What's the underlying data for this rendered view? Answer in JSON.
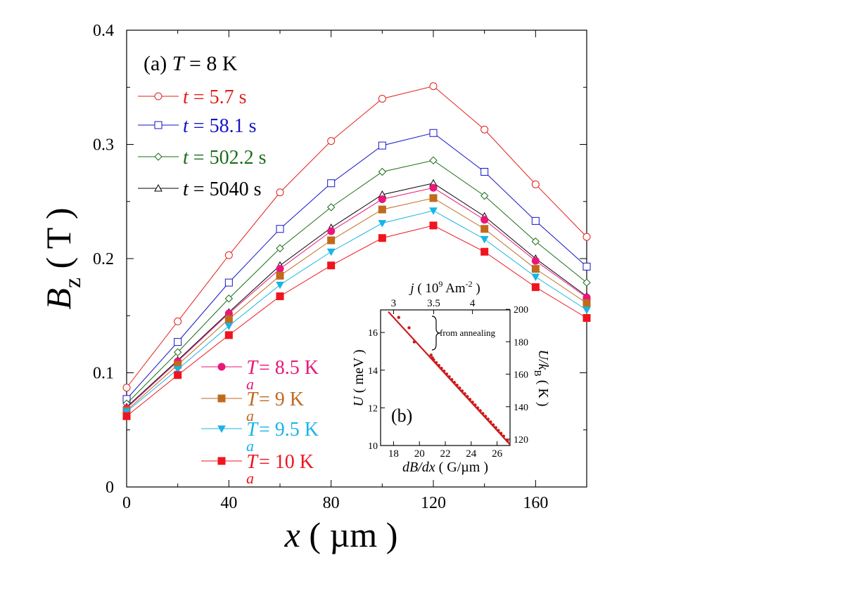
{
  "chart_data": [
    {
      "type": "line",
      "panel_label": "(a)",
      "header": {
        "var": "T",
        "rest": " = 8 K"
      },
      "xlabel": {
        "var": "x",
        "rest": " ( µm )"
      },
      "ylabel": {
        "var": "B",
        "sub": "z",
        "rest": " ( T )"
      },
      "xlim": [
        0,
        180
      ],
      "ylim": [
        0,
        0.4
      ],
      "xticks": [
        0,
        40,
        80,
        120,
        160
      ],
      "yticks": [
        0,
        0.1,
        0.2,
        0.3,
        0.4
      ],
      "ytick_labels": [
        "0",
        "0.1",
        "0.2",
        "0.3",
        "0.4"
      ],
      "x": [
        0,
        20,
        40,
        60,
        80,
        100,
        120,
        140,
        160,
        180
      ],
      "series": [
        {
          "name": "t = 5.7 s",
          "var": "t",
          "rest": " = 5.7 s",
          "color": "#e0201a",
          "marker": "circle",
          "filled": false,
          "values": [
            0.087,
            0.145,
            0.203,
            0.258,
            0.303,
            0.34,
            0.351,
            0.313,
            0.265,
            0.219
          ]
        },
        {
          "name": "t = 58.1 s",
          "var": "t",
          "rest": " = 58.1 s",
          "color": "#1515c8",
          "marker": "square",
          "filled": false,
          "values": [
            0.077,
            0.127,
            0.179,
            0.226,
            0.266,
            0.299,
            0.31,
            0.276,
            0.233,
            0.193
          ]
        },
        {
          "name": "t = 502.2 s",
          "var": "t",
          "rest": " = 502.2 s",
          "color": "#1a6e1a",
          "marker": "diamond",
          "filled": false,
          "values": [
            0.073,
            0.118,
            0.165,
            0.209,
            0.245,
            0.276,
            0.286,
            0.255,
            0.215,
            0.179
          ]
        },
        {
          "name": "t = 5040 s",
          "var": "t",
          "rest": " = 5040 s",
          "color": "#000000",
          "marker": "triangle",
          "filled": false,
          "values": [
            0.07,
            0.111,
            0.153,
            0.194,
            0.227,
            0.256,
            0.266,
            0.237,
            0.2,
            0.167
          ]
        },
        {
          "name": "Ta = 8.5 K",
          "var": "T",
          "sub": "a",
          "rest": " = 8.5 K",
          "color": "#e8187a",
          "marker": "circle",
          "filled": true,
          "values": [
            0.069,
            0.11,
            0.152,
            0.191,
            0.224,
            0.252,
            0.262,
            0.234,
            0.198,
            0.166
          ]
        },
        {
          "name": "Ta = 9 K",
          "var": "T",
          "sub": "a",
          "rest": " = 9 K",
          "color": "#c06a1e",
          "marker": "square",
          "filled": true,
          "values": [
            0.067,
            0.107,
            0.147,
            0.185,
            0.216,
            0.243,
            0.253,
            0.226,
            0.191,
            0.161
          ]
        },
        {
          "name": "Ta = 9.5 K",
          "var": "T",
          "sub": "a",
          "rest": " = 9.5 K",
          "color": "#18b4e8",
          "marker": "triangle-down",
          "filled": true,
          "values": [
            0.066,
            0.103,
            0.141,
            0.177,
            0.206,
            0.231,
            0.242,
            0.217,
            0.184,
            0.155
          ]
        },
        {
          "name": "Ta = 10 K",
          "var": "T",
          "sub": "a",
          "rest": " = 10 K",
          "color": "#f0141e",
          "marker": "square",
          "filled": true,
          "values": [
            0.062,
            0.098,
            0.133,
            0.167,
            0.194,
            0.218,
            0.229,
            0.206,
            0.175,
            0.148
          ]
        }
      ]
    },
    {
      "type": "scatter",
      "panel_label": "(b)",
      "xlabel": {
        "var": "dB/dx",
        "rest": " ( G/µm )"
      },
      "ylabel": {
        "var": "U",
        "rest": " ( meV )"
      },
      "top_axis_label": {
        "var": "j",
        "rest_before": " ( 10",
        "sup": "9",
        "rest_after": " Am",
        "sup2": "-2",
        "close": " )"
      },
      "right_axis_label": {
        "var": "U/k",
        "sub": "B",
        "rest": " ( K )"
      },
      "xlim": [
        17,
        27
      ],
      "ylim": [
        10,
        17.2
      ],
      "xticks": [
        18,
        20,
        22,
        24,
        26
      ],
      "yticks": [
        10,
        12,
        14,
        16
      ],
      "top_ticks": [
        {
          "label": "3",
          "x": 18.0
        },
        {
          "label": "3.5",
          "x": 21.1
        },
        {
          "label": "4",
          "x": 24.1
        }
      ],
      "right_ticks": [
        {
          "label": "120",
          "y": 10.34
        },
        {
          "label": "140",
          "y": 12.06
        },
        {
          "label": "160",
          "y": 13.79
        },
        {
          "label": "180",
          "y": 15.51
        },
        {
          "label": "200",
          "y": 17.23
        }
      ],
      "annotation": "from annealing",
      "fit_line": {
        "x": [
          17.6,
          27.0
        ],
        "y": [
          17.1,
          10.05
        ]
      },
      "color": "#cc1a1a",
      "points": {
        "x": [
          18.4,
          19.2,
          19.6,
          20.9,
          21.0,
          21.1,
          21.3,
          21.5,
          21.7,
          21.9,
          22.1,
          22.3,
          22.5,
          22.7,
          22.9,
          23.1,
          23.3,
          23.5,
          23.7,
          23.9,
          24.1,
          24.3,
          24.5,
          24.7,
          24.9,
          25.1,
          25.3,
          25.5,
          25.7,
          25.9,
          26.1,
          26.3,
          26.5,
          26.8
        ],
        "y": [
          16.8,
          16.25,
          15.5,
          14.8,
          14.65,
          14.55,
          14.4,
          14.25,
          14.1,
          13.95,
          13.8,
          13.65,
          13.5,
          13.35,
          13.2,
          13.05,
          12.9,
          12.75,
          12.6,
          12.45,
          12.3,
          12.15,
          12.0,
          11.85,
          11.7,
          11.55,
          11.4,
          11.25,
          11.1,
          10.95,
          10.8,
          10.65,
          10.5,
          10.25
        ]
      }
    }
  ]
}
